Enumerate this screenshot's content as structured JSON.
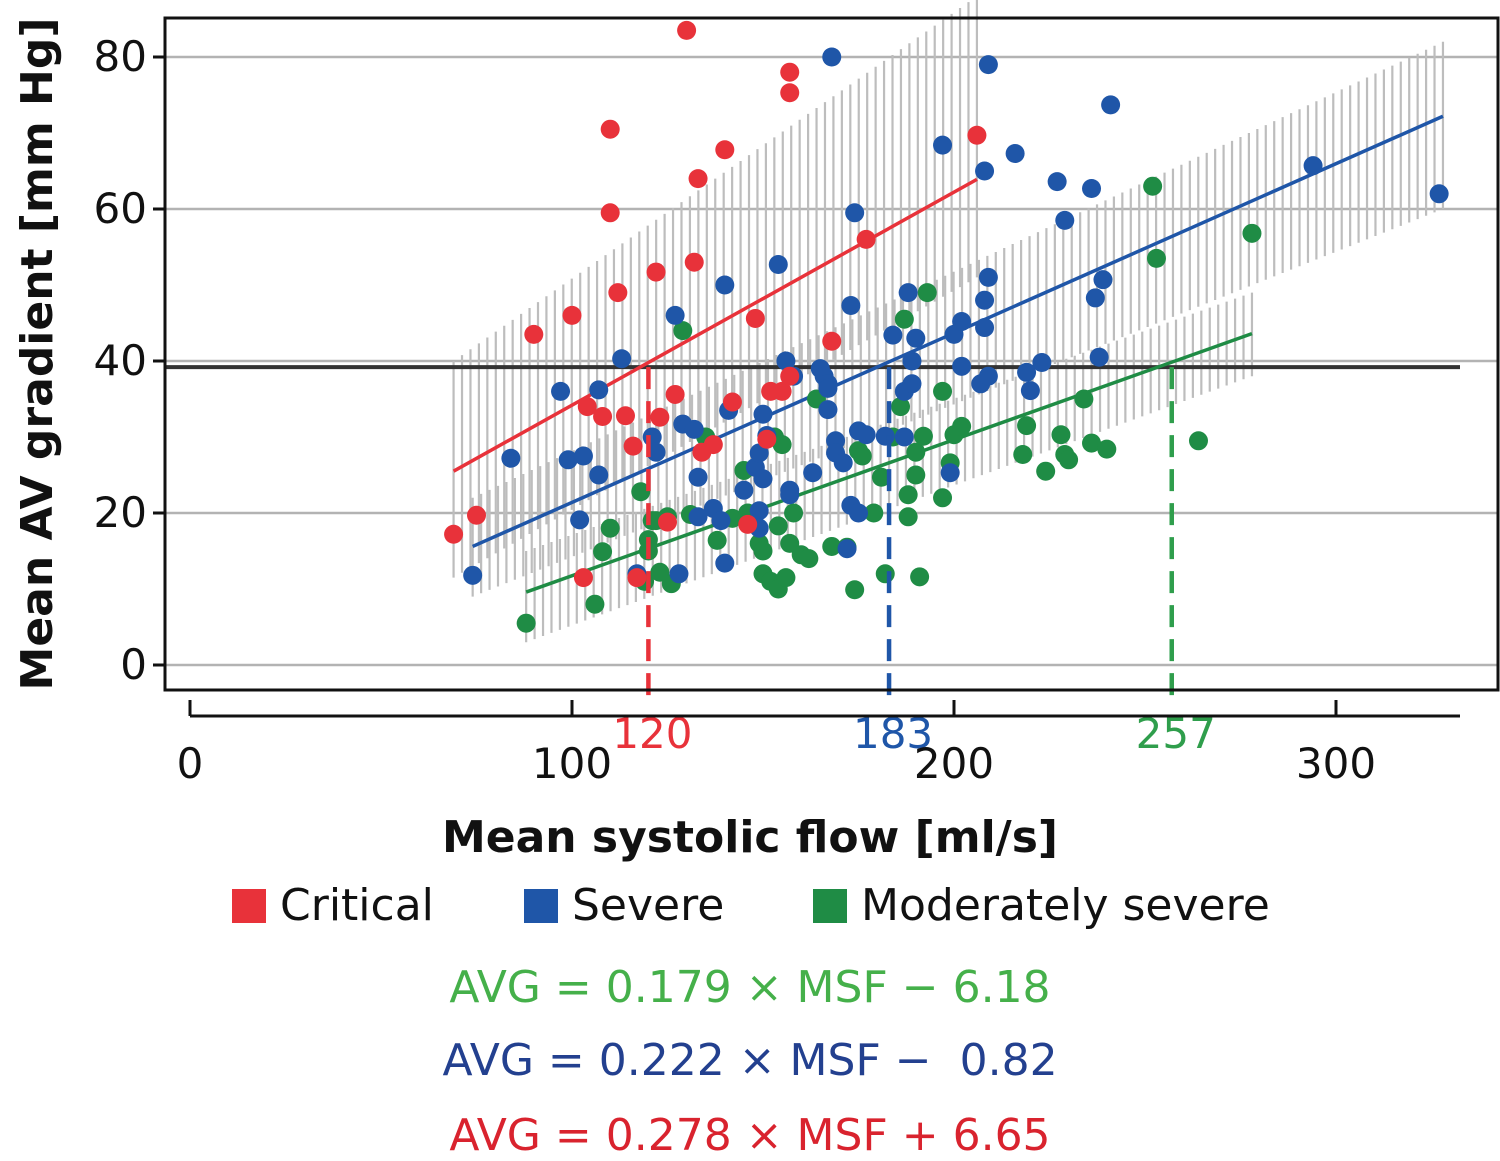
{
  "chart_data": {
    "type": "scatter",
    "xlabel": "Mean systolic flow [ml/s]",
    "ylabel": "Mean AV gradient [mm Hg]",
    "xlim": [
      -7,
      340
    ],
    "ylim": [
      -4,
      84
    ],
    "x_ticks": [
      0,
      100,
      200,
      300
    ],
    "y_ticks": [
      0,
      20,
      40,
      60,
      80
    ],
    "grid": "horizontal",
    "threshold_line": {
      "y": 39.2,
      "color": "#333333"
    },
    "colors": {
      "critical": "#e8323a",
      "severe": "#1f56a8",
      "moderately_severe": "#1f8c45",
      "band": "#bdbdbd",
      "axis": "#111111",
      "grid": "#b3b3b3"
    },
    "legend": [
      {
        "label": "Critical",
        "color": "#e8323a"
      },
      {
        "label": "Severe",
        "color": "#1f56a8"
      },
      {
        "label": "Moderately severe",
        "color": "#1f8c45"
      }
    ],
    "cutoffs": [
      {
        "x": 120,
        "label": "120",
        "color": "#e8323a"
      },
      {
        "x": 183,
        "label": "183",
        "color": "#1f56a8"
      },
      {
        "x": 257,
        "label": "257",
        "color": "#2f9e4c"
      }
    ],
    "equations": [
      {
        "text": "AVG = 0.179 × MSF − 6.18",
        "color": "#45b04a"
      },
      {
        "text": "AVG = 0.222 × MSF −  0.82",
        "color": "#23408f"
      },
      {
        "text": "AVG = 0.278 × MSF + 6.65",
        "color": "#d9232e"
      }
    ],
    "series": [
      {
        "name": "Critical",
        "color": "#e8323a",
        "fit": {
          "x": [
            69,
            206
          ],
          "y": [
            25.5,
            63.9
          ]
        },
        "band": {
          "x": [
            69,
            206
          ],
          "lower": [
            11.5,
            51
          ],
          "upper": [
            40,
            88
          ],
          "width": [
            4,
            6
          ]
        },
        "points": [
          [
            69,
            17.2
          ],
          [
            75,
            19.7
          ],
          [
            90,
            43.5
          ],
          [
            100,
            46
          ],
          [
            103,
            11.5
          ],
          [
            104,
            34
          ],
          [
            108,
            32.7
          ],
          [
            110,
            70.5
          ],
          [
            110,
            59.5
          ],
          [
            112,
            49
          ],
          [
            114,
            32.8
          ],
          [
            116,
            28.8
          ],
          [
            117,
            11.5
          ],
          [
            122,
            51.7
          ],
          [
            123,
            32.6
          ],
          [
            125,
            18.8
          ],
          [
            127,
            35.6
          ],
          [
            130,
            83.5
          ],
          [
            132,
            53
          ],
          [
            133,
            64
          ],
          [
            134,
            28
          ],
          [
            137,
            29
          ],
          [
            140,
            67.8
          ],
          [
            142,
            34.6
          ],
          [
            146,
            18.5
          ],
          [
            148,
            45.6
          ],
          [
            151,
            29.7
          ],
          [
            152,
            36
          ],
          [
            155,
            36
          ],
          [
            157,
            78
          ],
          [
            157,
            75.3
          ],
          [
            157,
            38
          ],
          [
            168,
            42.6
          ],
          [
            177,
            56
          ],
          [
            206,
            69.7
          ]
        ]
      },
      {
        "name": "Severe",
        "color": "#1f56a8",
        "fit": {
          "x": [
            74,
            328
          ],
          "y": [
            15.6,
            72.2
          ]
        },
        "band": {
          "x": [
            74,
            328
          ],
          "lower": [
            9,
            60
          ],
          "upper": [
            22,
            82
          ],
          "width": [
            2,
            6
          ]
        },
        "points": [
          [
            74,
            11.8
          ],
          [
            84,
            27.2
          ],
          [
            97,
            36
          ],
          [
            99,
            27
          ],
          [
            102,
            19.1
          ],
          [
            103,
            27.5
          ],
          [
            107,
            25
          ],
          [
            107,
            36.2
          ],
          [
            113,
            40.3
          ],
          [
            117,
            12
          ],
          [
            121,
            30
          ],
          [
            122,
            28
          ],
          [
            127,
            46
          ],
          [
            128,
            12
          ],
          [
            129,
            31.7
          ],
          [
            132,
            31
          ],
          [
            133,
            19.5
          ],
          [
            133,
            24.7
          ],
          [
            137,
            20.6
          ],
          [
            139,
            19
          ],
          [
            140,
            13.4
          ],
          [
            140,
            50
          ],
          [
            141,
            33.5
          ],
          [
            145,
            23
          ],
          [
            148,
            26
          ],
          [
            149,
            27.9
          ],
          [
            149,
            20.3
          ],
          [
            149,
            18
          ],
          [
            150,
            33
          ],
          [
            150,
            24.5
          ],
          [
            151,
            30.2
          ],
          [
            154,
            52.7
          ],
          [
            156,
            40
          ],
          [
            157,
            22.4
          ],
          [
            157,
            23
          ],
          [
            158,
            38
          ],
          [
            163,
            25.3
          ],
          [
            165,
            39
          ],
          [
            166,
            38
          ],
          [
            167,
            37
          ],
          [
            167,
            36.4
          ],
          [
            167,
            33.6
          ],
          [
            168,
            80
          ],
          [
            169,
            29.5
          ],
          [
            169,
            27.9
          ],
          [
            171,
            26.6
          ],
          [
            172,
            15.3
          ],
          [
            173,
            21
          ],
          [
            173,
            47.3
          ],
          [
            174,
            59.5
          ],
          [
            175,
            20
          ],
          [
            175,
            30.8
          ],
          [
            177,
            30.3
          ],
          [
            182,
            30.1
          ],
          [
            184,
            43.4
          ],
          [
            187,
            30
          ],
          [
            187,
            36
          ],
          [
            188,
            49
          ],
          [
            189,
            40
          ],
          [
            189,
            37
          ],
          [
            190,
            43
          ],
          [
            197,
            68.4
          ],
          [
            199,
            25.3
          ],
          [
            200,
            43.5
          ],
          [
            202,
            45.2
          ],
          [
            202,
            39.3
          ],
          [
            207,
            37
          ],
          [
            208,
            65
          ],
          [
            208,
            44.4
          ],
          [
            208,
            48
          ],
          [
            209,
            38
          ],
          [
            209,
            51
          ],
          [
            209,
            79
          ],
          [
            216,
            67.3
          ],
          [
            219,
            38.5
          ],
          [
            220,
            36.1
          ],
          [
            223,
            39.8
          ],
          [
            227,
            63.6
          ],
          [
            229,
            58.5
          ],
          [
            236,
            62.7
          ],
          [
            237,
            48.3
          ],
          [
            238,
            40.5
          ],
          [
            239,
            50.7
          ],
          [
            241,
            73.7
          ],
          [
            294,
            65.7
          ],
          [
            327,
            62
          ]
        ]
      },
      {
        "name": "Moderately severe",
        "color": "#1f8c45",
        "fit": {
          "x": [
            88,
            278
          ],
          "y": [
            9.6,
            43.6
          ]
        },
        "band": {
          "x": [
            88,
            278
          ],
          "lower": [
            3,
            38
          ],
          "upper": [
            15,
            49
          ],
          "width": [
            1,
            5
          ]
        },
        "points": [
          [
            88,
            5.5
          ],
          [
            106,
            8
          ],
          [
            108,
            14.9
          ],
          [
            110,
            18
          ],
          [
            118,
            22.8
          ],
          [
            119,
            11
          ],
          [
            120,
            16.5
          ],
          [
            120,
            15
          ],
          [
            121,
            19
          ],
          [
            122,
            19
          ],
          [
            123,
            12.2
          ],
          [
            125,
            19.5
          ],
          [
            126,
            10.7
          ],
          [
            129,
            44
          ],
          [
            131,
            19.8
          ],
          [
            135,
            30
          ],
          [
            138,
            16.4
          ],
          [
            142,
            19.3
          ],
          [
            145,
            25.6
          ],
          [
            146,
            20
          ],
          [
            149,
            16
          ],
          [
            150,
            12
          ],
          [
            150,
            15
          ],
          [
            152,
            11
          ],
          [
            153,
            30
          ],
          [
            154,
            10
          ],
          [
            154,
            18.3
          ],
          [
            155,
            29
          ],
          [
            156,
            11.5
          ],
          [
            157,
            16
          ],
          [
            158,
            20
          ],
          [
            160,
            14.5
          ],
          [
            162,
            14
          ],
          [
            164,
            35
          ],
          [
            168,
            15.6
          ],
          [
            172,
            15.5
          ],
          [
            174,
            9.9
          ],
          [
            175,
            28.2
          ],
          [
            176,
            27.5
          ],
          [
            179,
            20
          ],
          [
            181,
            24.7
          ],
          [
            182,
            12
          ],
          [
            184,
            30
          ],
          [
            186,
            34
          ],
          [
            187,
            45.5
          ],
          [
            188,
            22.4
          ],
          [
            188,
            19.5
          ],
          [
            190,
            28
          ],
          [
            190,
            25
          ],
          [
            191,
            11.6
          ],
          [
            192,
            30.1
          ],
          [
            193,
            49
          ],
          [
            197,
            22
          ],
          [
            197,
            36
          ],
          [
            199,
            26.6
          ],
          [
            200,
            30.3
          ],
          [
            202,
            31.4
          ],
          [
            218,
            27.7
          ],
          [
            219,
            31.5
          ],
          [
            224,
            25.5
          ],
          [
            228,
            30.3
          ],
          [
            229,
            27.7
          ],
          [
            230,
            27
          ],
          [
            234,
            35
          ],
          [
            236,
            29.2
          ],
          [
            240,
            28.4
          ],
          [
            252,
            63
          ],
          [
            253,
            53.5
          ],
          [
            264,
            29.5
          ],
          [
            278,
            56.8
          ]
        ]
      }
    ]
  }
}
